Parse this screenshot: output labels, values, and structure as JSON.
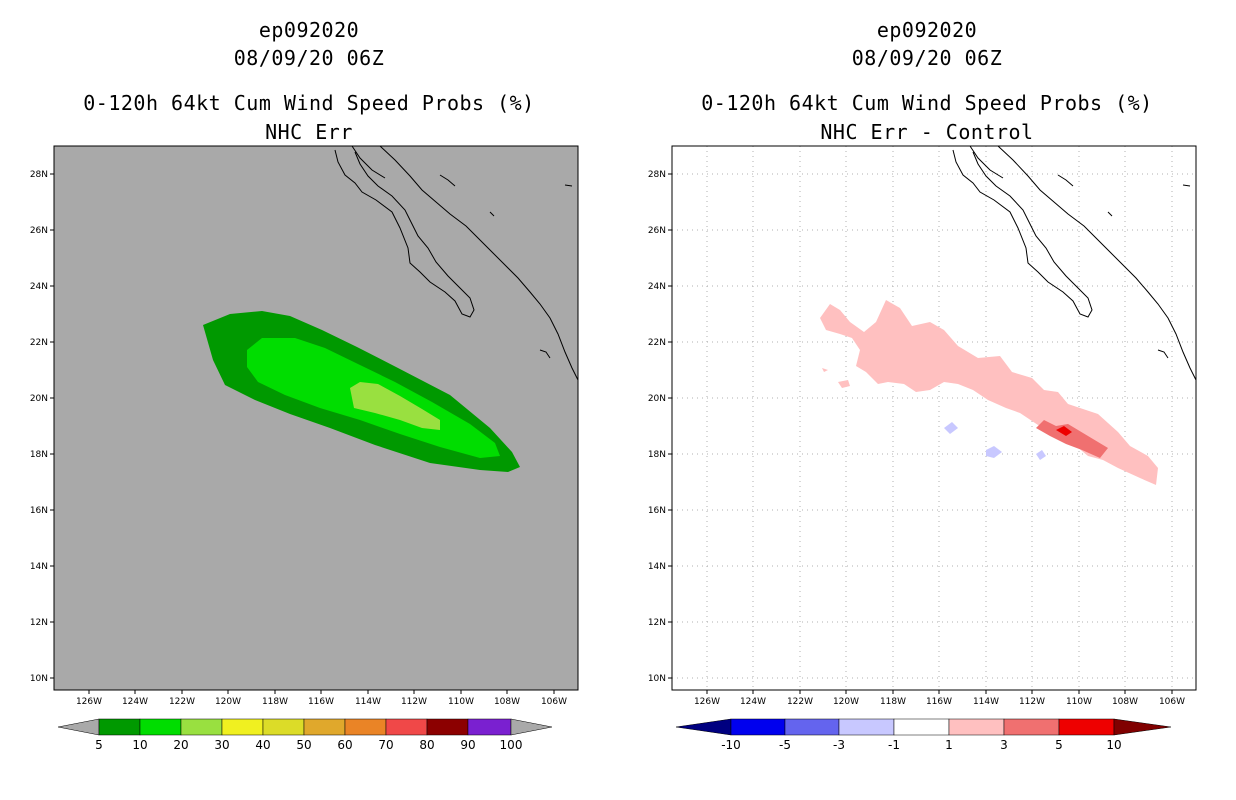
{
  "colors": {
    "left_background": "#a9a9a9",
    "right_background": "#ffffff",
    "prob_bins": [
      "#009900",
      "#00dd00",
      "#99e040",
      "#f0f020",
      "#dcdc28",
      "#e0a82c",
      "#ea8426",
      "#f04848",
      "#8c0000",
      "#7a20d0"
    ],
    "diff_bins": [
      "#000080",
      "#0000ee",
      "#6464ee",
      "#c8c8ff",
      "#ffffff",
      "#ffc0c0",
      "#f07070",
      "#ee0000",
      "#800000"
    ]
  },
  "left_panel": {
    "storm_id": "ep092020",
    "datetime": "08/09/20 06Z",
    "product": "0-120h 64kt Cum Wind Speed Probs (%)",
    "subtitle": "NHC Err",
    "lon_ticks": [
      "126W",
      "124W",
      "122W",
      "120W",
      "118W",
      "116W",
      "114W",
      "112W",
      "110W",
      "108W",
      "106W"
    ],
    "lat_ticks": [
      "28N",
      "26N",
      "24N",
      "22N",
      "20N",
      "18N",
      "16N",
      "14N",
      "12N",
      "10N"
    ],
    "colorbar_labels": [
      "5",
      "10",
      "20",
      "30",
      "40",
      "50",
      "60",
      "70",
      "80",
      "90",
      "100"
    ]
  },
  "right_panel": {
    "storm_id": "ep092020",
    "datetime": "08/09/20 06Z",
    "product": "0-120h 64kt Cum Wind Speed Probs (%)",
    "subtitle": "NHC Err - Control",
    "lon_ticks": [
      "126W",
      "124W",
      "122W",
      "120W",
      "118W",
      "116W",
      "114W",
      "112W",
      "110W",
      "108W",
      "106W"
    ],
    "lat_ticks": [
      "28N",
      "26N",
      "24N",
      "22N",
      "20N",
      "18N",
      "16N",
      "14N",
      "12N",
      "10N"
    ],
    "colorbar_labels": [
      "-10",
      "-5",
      "-3",
      "-1",
      "1",
      "3",
      "5",
      "10"
    ]
  }
}
